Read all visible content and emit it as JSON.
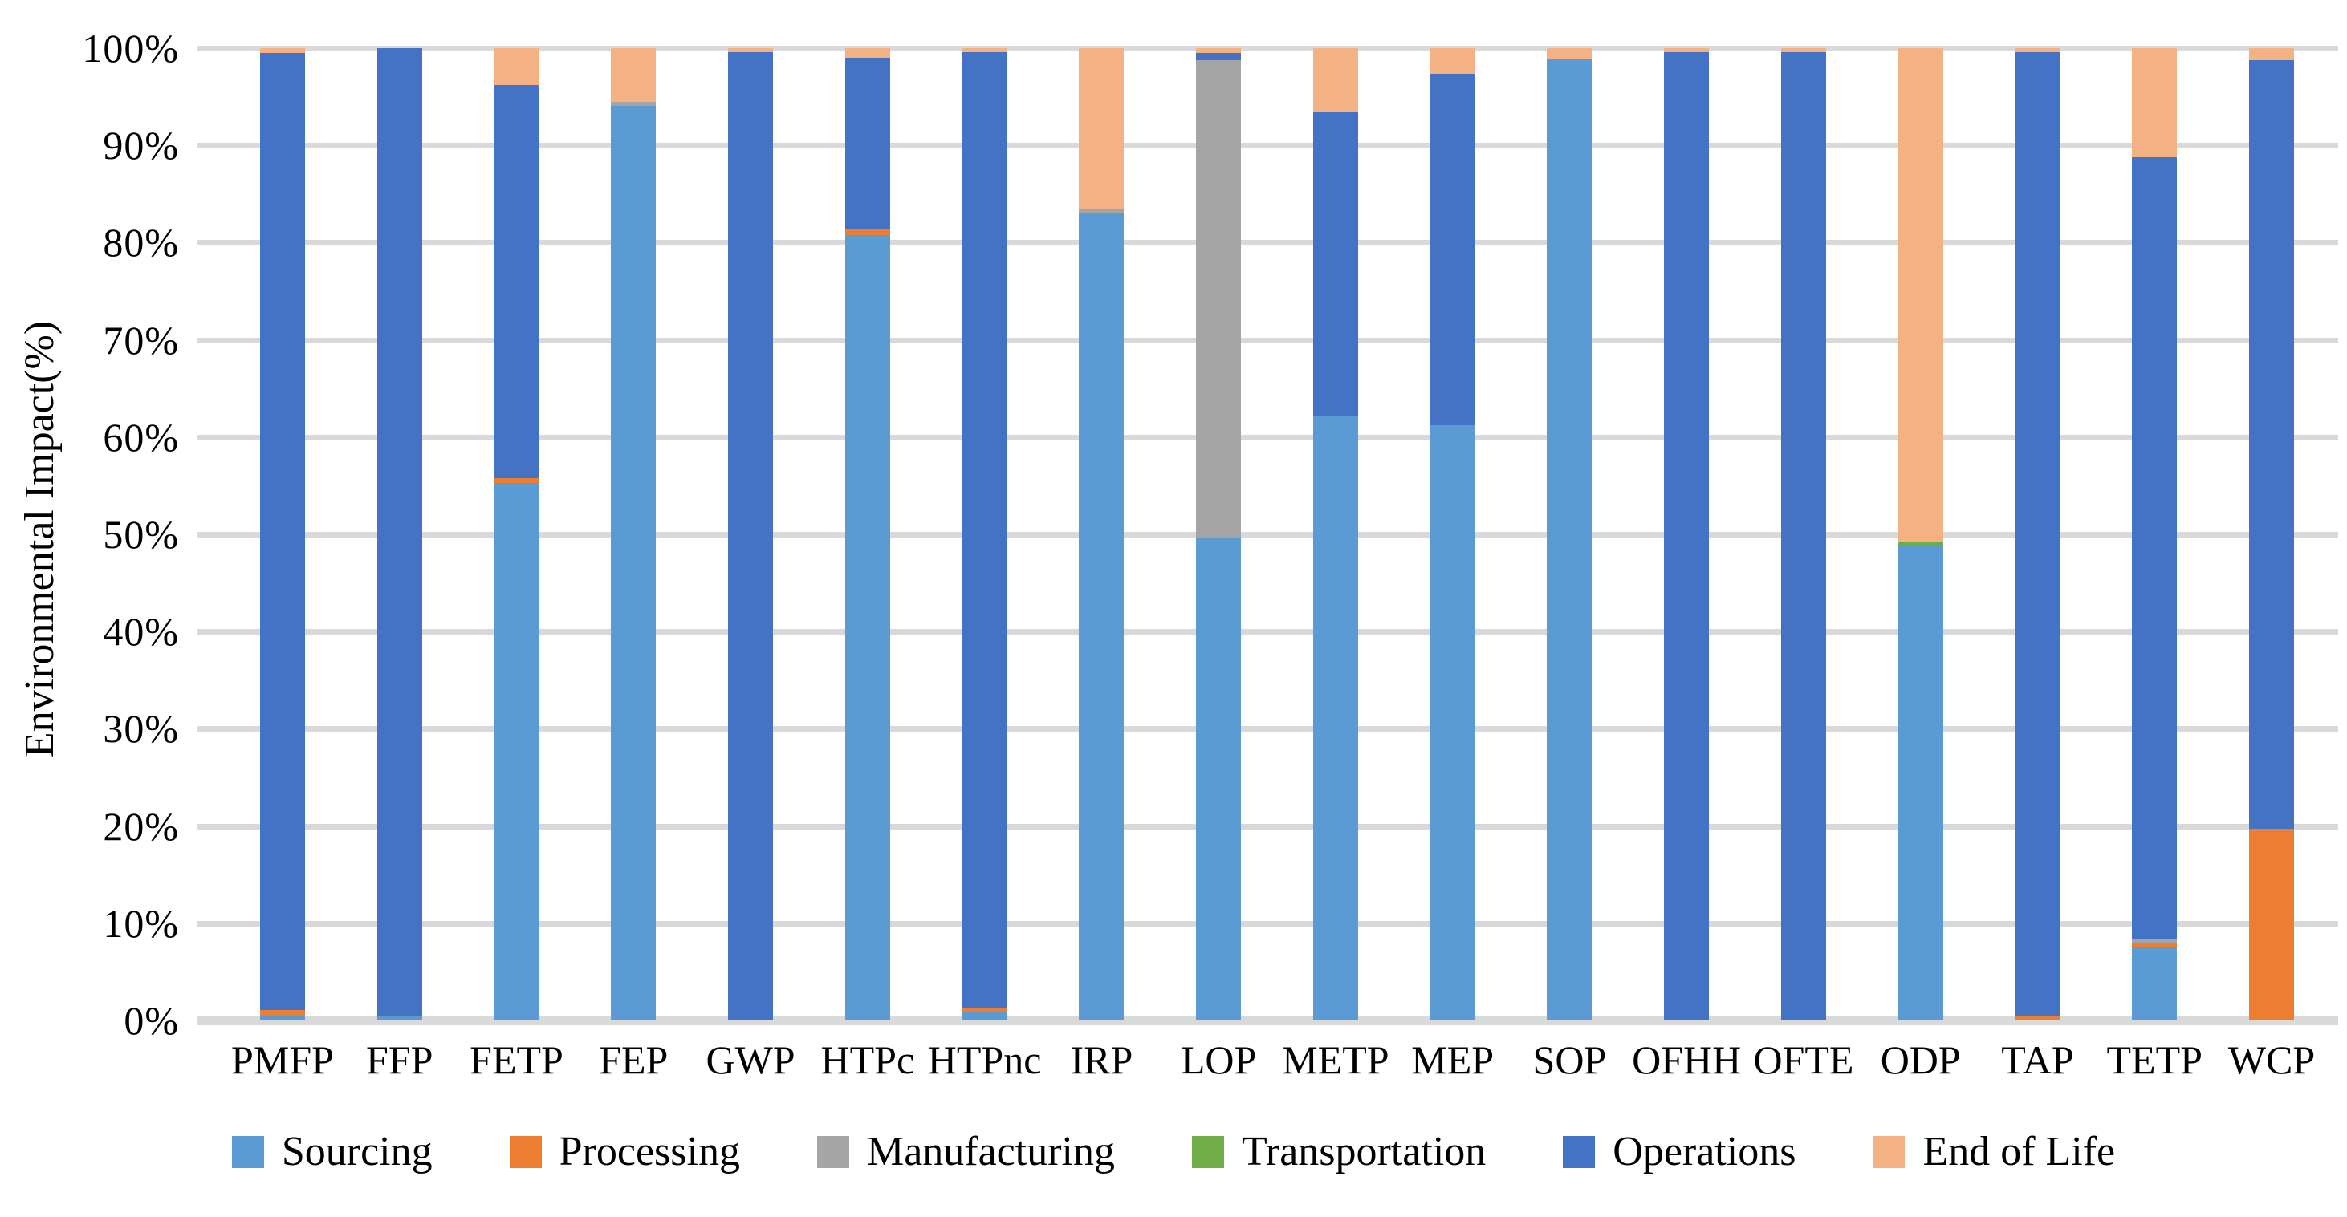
{
  "chart_data": {
    "type": "bar",
    "subtype": "stacked-100-percent-column",
    "title": "",
    "xlabel": "",
    "ylabel": "Environmental Impact(%)",
    "ylim": [
      0,
      100
    ],
    "grid": true,
    "gridline_color": "#D9D9D9",
    "background_color": "#FFFFFF",
    "legend_position": "bottom",
    "ytick_labels": [
      "0%",
      "10%",
      "20%",
      "30%",
      "40%",
      "50%",
      "60%",
      "70%",
      "80%",
      "90%",
      "100%"
    ],
    "categories": [
      "PMFP",
      "FFP",
      "FETP",
      "FEP",
      "GWP",
      "HTPc",
      "HTPnc",
      "IRP",
      "LOP",
      "METP",
      "MEP",
      "SOP",
      "OFHH",
      "OFTE",
      "ODP",
      "TAP",
      "TETP",
      "WCP"
    ],
    "series": [
      {
        "name": "Sourcing",
        "color": "#5B9BD5",
        "values": [
          0.5,
          0.5,
          55.3,
          94.1,
          0,
          80.8,
          0.8,
          83.0,
          49.7,
          62.1,
          61.2,
          98.9,
          0,
          0,
          48.8,
          0,
          7.5,
          0
        ]
      },
      {
        "name": "Processing",
        "color": "#ED7D31",
        "values": [
          0.6,
          0,
          0.5,
          0,
          0,
          0.6,
          0.5,
          0,
          0,
          0,
          0,
          0,
          0,
          0,
          0,
          0.5,
          0.4,
          19.7
        ]
      },
      {
        "name": "Manufacturing",
        "color": "#A5A5A5",
        "values": [
          0,
          0,
          0,
          0.4,
          0,
          0,
          0,
          0.4,
          49.1,
          0,
          0,
          0,
          0,
          0,
          0,
          0,
          0.4,
          0
        ]
      },
      {
        "name": "Transportation",
        "color": "#70AD47",
        "values": [
          0,
          0,
          0,
          0,
          0,
          0,
          0,
          0,
          0,
          0,
          0,
          0,
          0,
          0,
          0.4,
          0,
          0,
          0
        ]
      },
      {
        "name": "Operations",
        "color": "#4472C4",
        "values": [
          98.4,
          99.5,
          40.4,
          0,
          99.6,
          17.6,
          98.3,
          0,
          0.7,
          31.3,
          36.2,
          0,
          99.6,
          99.6,
          0,
          99.1,
          80.5,
          79.1
        ]
      },
      {
        "name": "End of Life",
        "color": "#F4B183",
        "values": [
          0.5,
          0,
          3.8,
          5.5,
          0.4,
          1.0,
          0.4,
          16.6,
          0.5,
          6.6,
          2.6,
          1.1,
          0.4,
          0.4,
          50.8,
          0.4,
          11.2,
          1.2
        ]
      }
    ]
  }
}
